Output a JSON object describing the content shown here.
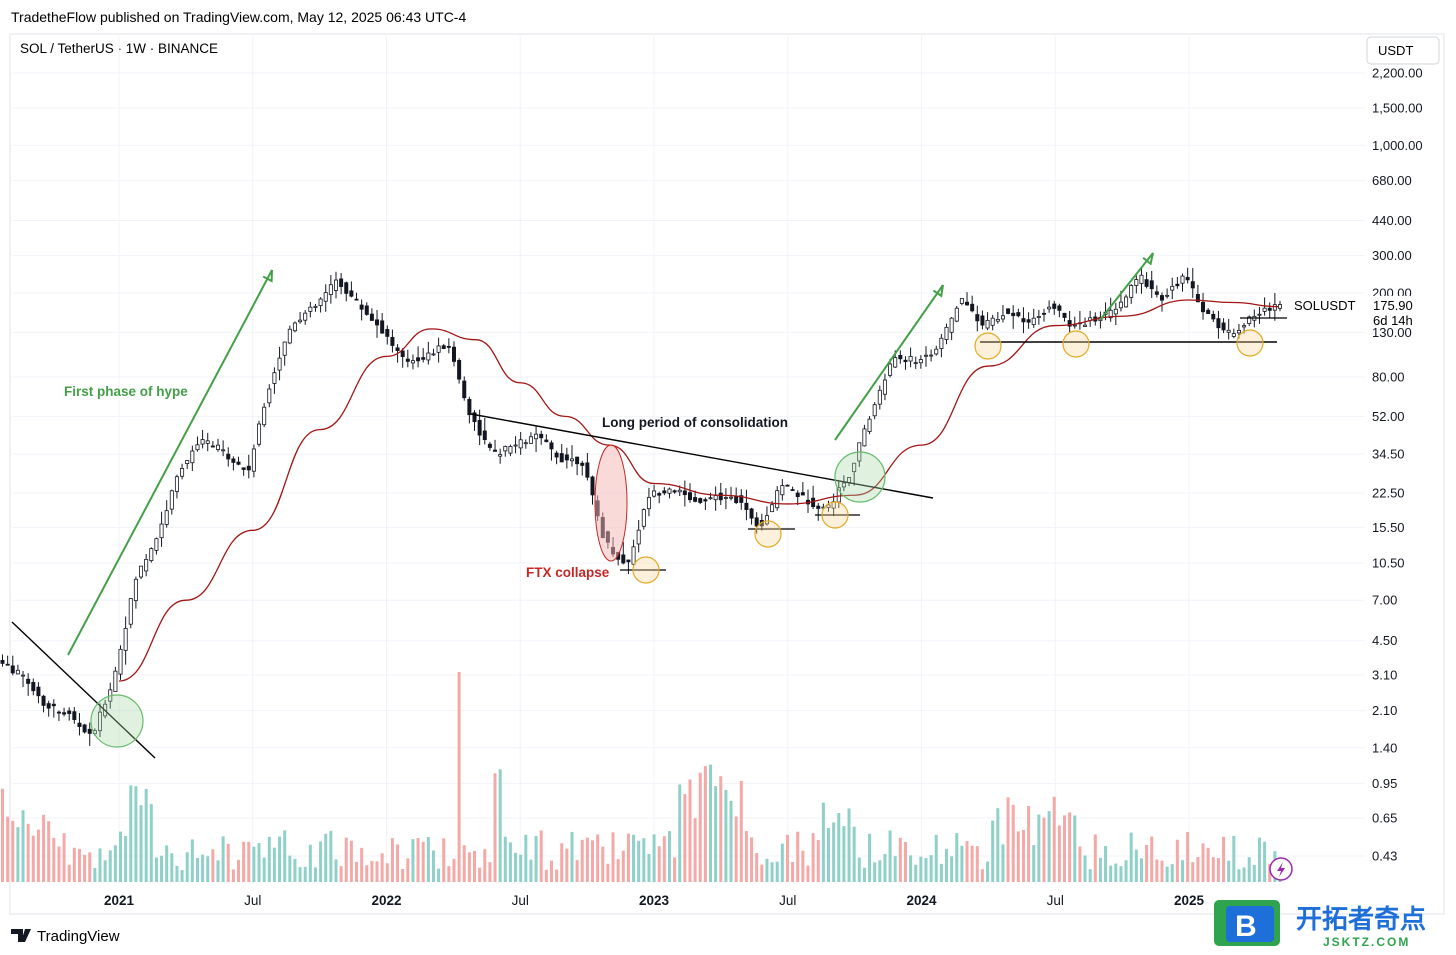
{
  "header": {
    "publish_line": "TradetheFlow published on TradingView.com, May 12, 2025 06:43 UTC-4",
    "symbol_line": "SOL / TetherUS · 1W · BINANCE",
    "currency_button": "USDT"
  },
  "footer": {
    "brand": "TradingView",
    "watermark_cn": "开拓者奇点",
    "watermark_url": "JSKTZ.COM",
    "watermark_letter": "B"
  },
  "colors": {
    "up": "#26a69a",
    "down": "#ef5350",
    "candle": "#131722",
    "ma": "#a31515",
    "hype_green": "#43a047",
    "ftx_red": "#c62828",
    "circle_yellow": "#f7c948",
    "circle_green": "#66bb6a",
    "grid": "#f0f3fa"
  },
  "price_label": {
    "symbol": "SOLUSDT",
    "last_price": "175.90",
    "countdown": "6d 14h"
  },
  "chart_data": {
    "type": "candlestick",
    "title": "SOL / TetherUS · 1W · BINANCE",
    "y_scale": "log",
    "y_unit": "USDT",
    "ylim": [
      0.36,
      2600
    ],
    "y_ticks": [
      {
        "value": 2200,
        "label": "2,200.00"
      },
      {
        "value": 1500,
        "label": "1,500.00"
      },
      {
        "value": 1000,
        "label": "1,000.00"
      },
      {
        "value": 680,
        "label": "680.00"
      },
      {
        "value": 440,
        "label": "440.00"
      },
      {
        "value": 300,
        "label": "300.00"
      },
      {
        "value": 200,
        "label": "200.00"
      },
      {
        "value": 130,
        "label": "130.00"
      },
      {
        "value": 80,
        "label": "80.00"
      },
      {
        "value": 52,
        "label": "52.00"
      },
      {
        "value": 34.5,
        "label": "34.50"
      },
      {
        "value": 22.5,
        "label": "22.50"
      },
      {
        "value": 15.5,
        "label": "15.50"
      },
      {
        "value": 10.5,
        "label": "10.50"
      },
      {
        "value": 7,
        "label": "7.00"
      },
      {
        "value": 4.5,
        "label": "4.50"
      },
      {
        "value": 3.1,
        "label": "3.10"
      },
      {
        "value": 2.1,
        "label": "2.10"
      },
      {
        "value": 1.4,
        "label": "1.40"
      },
      {
        "value": 0.95,
        "label": "0.95"
      },
      {
        "value": 0.65,
        "label": "0.65"
      },
      {
        "value": 0.43,
        "label": "0.43"
      }
    ],
    "x_ticks": [
      {
        "label": "2021",
        "year": true,
        "date": "2021-01"
      },
      {
        "label": "Jul",
        "year": false,
        "date": "2021-07"
      },
      {
        "label": "2022",
        "year": true,
        "date": "2022-01"
      },
      {
        "label": "Jul",
        "year": false,
        "date": "2022-07"
      },
      {
        "label": "2023",
        "year": true,
        "date": "2023-01"
      },
      {
        "label": "Jul",
        "year": false,
        "date": "2023-07"
      },
      {
        "label": "2024",
        "year": true,
        "date": "2024-01"
      },
      {
        "label": "Jul",
        "year": false,
        "date": "2024-07"
      },
      {
        "label": "2025",
        "year": true,
        "date": "2025-01"
      }
    ],
    "price_path": [
      [
        "2020-08",
        3.5
      ],
      [
        "2020-09",
        3.0
      ],
      [
        "2020-10",
        2.2
      ],
      [
        "2020-11",
        2.0
      ],
      [
        "2020-12",
        1.55
      ],
      [
        "2021-01",
        3.0
      ],
      [
        "2021-02",
        9.0
      ],
      [
        "2021-03",
        14.5
      ],
      [
        "2021-04",
        30.0
      ],
      [
        "2021-05",
        40.0
      ],
      [
        "2021-06",
        35.0
      ],
      [
        "2021-07",
        28.0
      ],
      [
        "2021-08",
        75.0
      ],
      [
        "2021-09",
        145.0
      ],
      [
        "2021-10",
        170.0
      ],
      [
        "2021-11",
        230.0
      ],
      [
        "2021-12",
        175.0
      ],
      [
        "2022-01",
        135.0
      ],
      [
        "2022-02",
        95.0
      ],
      [
        "2022-03",
        100.0
      ],
      [
        "2022-04",
        115.0
      ],
      [
        "2022-05",
        52.0
      ],
      [
        "2022-06",
        34.0
      ],
      [
        "2022-07",
        38.0
      ],
      [
        "2022-08",
        42.0
      ],
      [
        "2022-09",
        33.0
      ],
      [
        "2022-10",
        32.0
      ],
      [
        "2022-11",
        13.5
      ],
      [
        "2022-12",
        10.0
      ],
      [
        "2023-01",
        22.0
      ],
      [
        "2023-02",
        24.0
      ],
      [
        "2023-03",
        20.5
      ],
      [
        "2023-04",
        22.0
      ],
      [
        "2023-05",
        21.0
      ],
      [
        "2023-06",
        15.5
      ],
      [
        "2023-07",
        25.0
      ],
      [
        "2023-08",
        21.0
      ],
      [
        "2023-09",
        19.0
      ],
      [
        "2023-10",
        28.0
      ],
      [
        "2023-11",
        55.0
      ],
      [
        "2023-12",
        100.0
      ],
      [
        "2024-01",
        95.0
      ],
      [
        "2024-02",
        110.0
      ],
      [
        "2024-03",
        190.0
      ],
      [
        "2024-04",
        140.0
      ],
      [
        "2024-05",
        165.0
      ],
      [
        "2024-06",
        140.0
      ],
      [
        "2024-07",
        175.0
      ],
      [
        "2024-08",
        140.0
      ],
      [
        "2024-09",
        150.0
      ],
      [
        "2024-10",
        165.0
      ],
      [
        "2024-11",
        240.0
      ],
      [
        "2024-12",
        190.0
      ],
      [
        "2025-01",
        240.0
      ],
      [
        "2025-02",
        160.0
      ],
      [
        "2025-03",
        128.0
      ],
      [
        "2025-04",
        150.0
      ],
      [
        "2025-05",
        175.9
      ]
    ],
    "moving_average": [
      [
        "2021-01",
        2.9
      ],
      [
        "2021-04",
        7.0
      ],
      [
        "2021-07",
        15.0
      ],
      [
        "2021-10",
        45.0
      ],
      [
        "2022-01",
        100.0
      ],
      [
        "2022-03",
        135.0
      ],
      [
        "2022-05",
        120.0
      ],
      [
        "2022-07",
        75.0
      ],
      [
        "2022-09",
        52.0
      ],
      [
        "2022-11",
        38.0
      ],
      [
        "2023-01",
        25.0
      ],
      [
        "2023-04",
        22.0
      ],
      [
        "2023-07",
        20.0
      ],
      [
        "2023-10",
        22.0
      ],
      [
        "2024-01",
        38.0
      ],
      [
        "2024-04",
        90.0
      ],
      [
        "2024-07",
        140.0
      ],
      [
        "2024-10",
        155.0
      ],
      [
        "2025-01",
        185.0
      ],
      [
        "2025-03",
        180.0
      ],
      [
        "2025-05",
        172.0
      ]
    ],
    "volume_note": "weekly volume bars, colored by candle direction",
    "annotations": {
      "hype": "First phase of hype",
      "consolidation": "Long period of consolidation",
      "ftx": "FTX collapse"
    },
    "levels": {
      "support_2024": 117,
      "range_2025_top": 152
    }
  }
}
